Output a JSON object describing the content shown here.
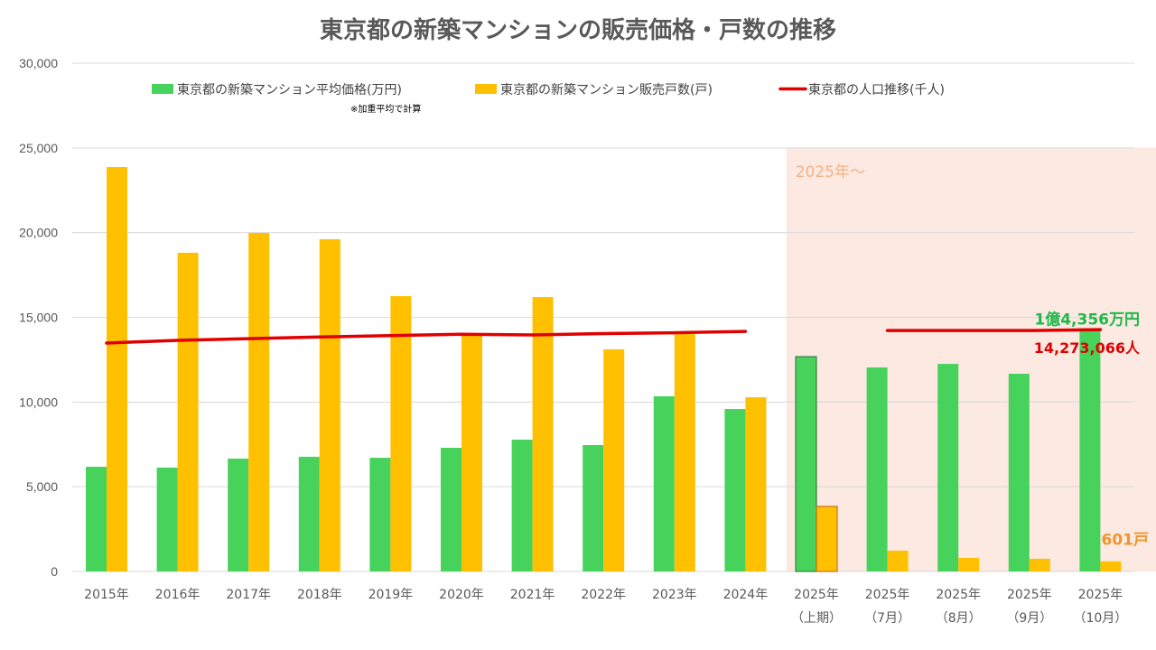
{
  "chart_data": {
    "type": "bar",
    "title": "東京都の新築マンションの販売価格・戸数の推移",
    "xlabel": "",
    "ylabel": "",
    "ylim": [
      0,
      30000
    ],
    "yticks": [
      "0",
      "5,000",
      "10,000",
      "15,000",
      "20,000",
      "25,000",
      "30,000"
    ],
    "ytick_values": [
      0,
      5000,
      10000,
      15000,
      20000,
      25000,
      30000
    ],
    "grid": true,
    "legend_position": "top",
    "categories": [
      [
        "2015年"
      ],
      [
        "2016年"
      ],
      [
        "2017年"
      ],
      [
        "2018年"
      ],
      [
        "2019年"
      ],
      [
        "2020年"
      ],
      [
        "2021年"
      ],
      [
        "2022年"
      ],
      [
        "2023年"
      ],
      [
        "2024年"
      ],
      [
        "2025年",
        "（上期）"
      ],
      [
        "2025年",
        "（7月）"
      ],
      [
        "2025年",
        "（8月）"
      ],
      [
        "2025年",
        "（9月）"
      ],
      [
        "2025年",
        "（10月）"
      ]
    ],
    "series": [
      {
        "name": "東京都の新築マンション平均価格(万円)",
        "type": "bar",
        "color": "#47d35b",
        "values": [
          6180,
          6130,
          6660,
          6770,
          6710,
          7300,
          7780,
          7460,
          10340,
          9590,
          12680,
          12040,
          12250,
          11670,
          14356
        ]
      },
      {
        "name": "東京都の新築マンション販売戸数(戸)",
        "type": "bar",
        "color": "#ffc000",
        "values": [
          23870,
          18810,
          19980,
          19610,
          16250,
          14010,
          16200,
          13110,
          14010,
          10280,
          3840,
          1230,
          800,
          750,
          601
        ]
      },
      {
        "name": "東京都の人口推移(千人)",
        "type": "line",
        "color": "#e00000",
        "segments": [
          {
            "from_index": 0,
            "to_index": 9,
            "values": [
              13480,
              13640,
              13740,
              13840,
              13920,
              14000,
              13960,
              14040,
              14090,
              14170
            ]
          },
          {
            "from_index": 11,
            "to_index": 14,
            "values": [
              14220,
              14220,
              14220,
              14273
            ]
          }
        ]
      }
    ],
    "legend_note": "※加重平均で計算",
    "highlight_region": {
      "label": "2025年～",
      "from_index": 10,
      "to_index": 14,
      "color": "#fbe9e2"
    },
    "annotations": [
      {
        "text": "1億4,356万円",
        "series": 0,
        "index": 14,
        "color": "#1fb84a"
      },
      {
        "text": "14,273,066人",
        "series": 2,
        "index": 14,
        "color": "#e00000"
      },
      {
        "text": "601戸",
        "series": 1,
        "index": 14,
        "color": "#f0952a"
      }
    ]
  }
}
